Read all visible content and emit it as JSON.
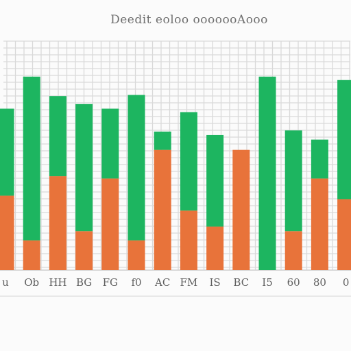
{
  "chart_data": {
    "type": "bar",
    "stacked": true,
    "title": "Deedit eoloo ooooooAooo",
    "xlabel": "",
    "ylabel": "",
    "ylim": [
      0,
      100
    ],
    "grid": true,
    "legend": "none",
    "categories": [
      "u",
      "Ob",
      "HH",
      "BG",
      "FG",
      "f0",
      "AC",
      "FM",
      "IS",
      "BC",
      "I5",
      "60",
      "80",
      "0"
    ],
    "series": [
      {
        "color": "#e8733a",
        "values": [
          32.5,
          13,
          41,
          17,
          40,
          13,
          52.5,
          26,
          19,
          52.5,
          0,
          17,
          40,
          31
        ]
      },
      {
        "color": "#1db560",
        "values": [
          38,
          71.5,
          35,
          55.5,
          30.5,
          63.5,
          8,
          43,
          40,
          0,
          84.5,
          44,
          17,
          52
        ]
      }
    ]
  }
}
